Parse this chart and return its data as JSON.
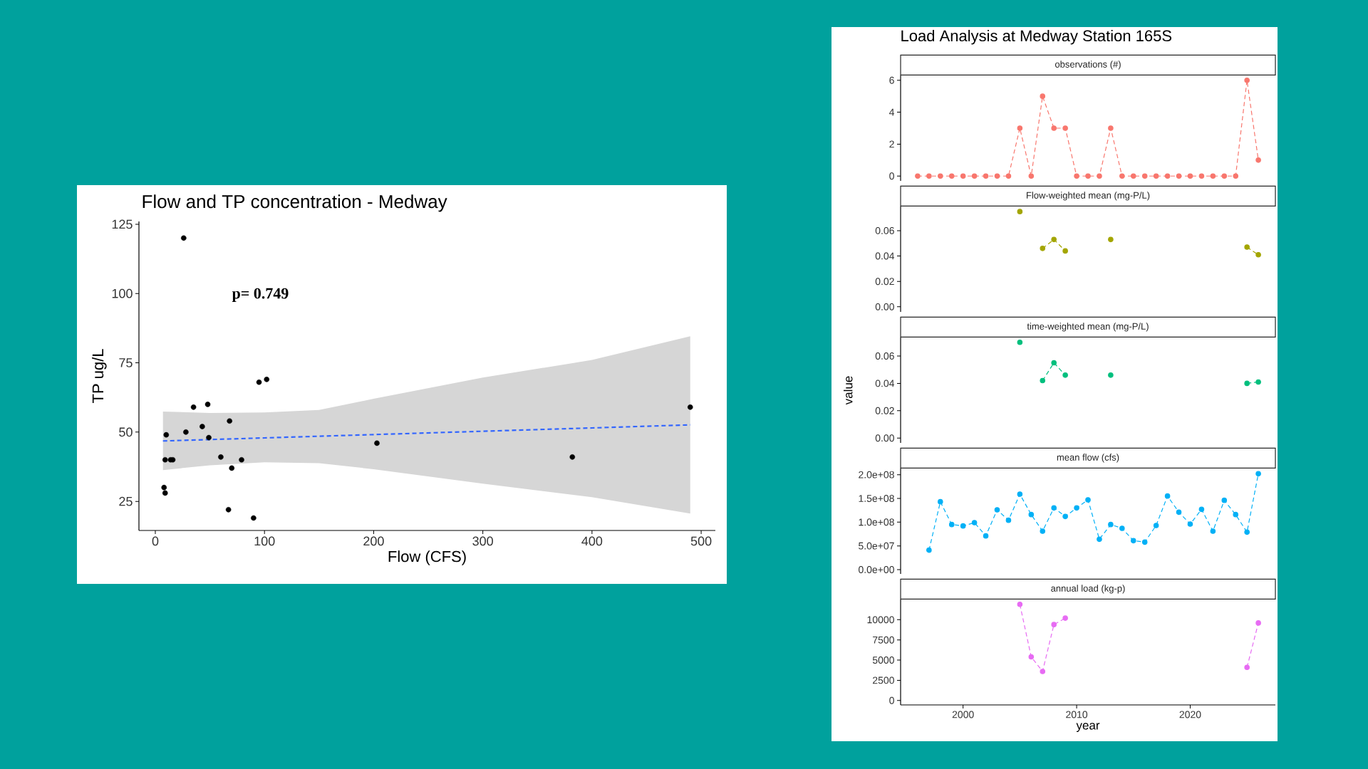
{
  "chart_data": [
    {
      "type": "scatter",
      "title": "Flow and TP concentration - Medway",
      "xlabel": "Flow (CFS)",
      "ylabel": "TP ug/L",
      "xlim": [
        -15,
        513
      ],
      "ylim": [
        14.5,
        126
      ],
      "xticks": [
        0,
        100,
        200,
        300,
        400,
        500
      ],
      "yticks": [
        25,
        50,
        75,
        100,
        125
      ],
      "marker": "circle",
      "annotations": [
        "p= 0.749"
      ],
      "series": [
        {
          "type": "scatter",
          "color": "#000000",
          "x": [
            9,
            10,
            8,
            9,
            14,
            16,
            26,
            28,
            35,
            43,
            48,
            49,
            60,
            68,
            70,
            67,
            79,
            90,
            95,
            102,
            203,
            382,
            490
          ],
          "values": [
            40,
            49,
            30,
            28,
            40,
            40,
            120,
            50,
            59,
            52,
            60,
            48,
            41,
            54,
            37,
            22,
            40,
            19,
            68,
            69,
            46,
            41,
            59
          ]
        },
        {
          "type": "line",
          "color": "#3366ff",
          "marker": "none",
          "line_style": "dashed",
          "x": [
            7,
            50,
            100,
            150,
            200,
            300,
            400,
            490
          ],
          "values": [
            46.8,
            47.3,
            47.9,
            48.5,
            49.1,
            50.3,
            51.5,
            52.6
          ],
          "lower": [
            36.3,
            38.0,
            39.1,
            38.8,
            36.6,
            31.4,
            26.5,
            20.6
          ],
          "upper": [
            57.4,
            56.9,
            57.1,
            58.0,
            62.0,
            69.7,
            76.0,
            84.6
          ]
        }
      ]
    },
    {
      "type": "line",
      "title": "Load Analysis at Medway Station 165S",
      "subtitle": "observations (#)",
      "color": "#f8766d",
      "marker": "circle",
      "line_style": "dashed",
      "tick_labels": "y",
      "xlim": [
        1994.5,
        2027.5
      ],
      "ylim": [
        -0.3,
        6.3
      ],
      "yticks": [
        0,
        2,
        4,
        6
      ],
      "x": [
        1996,
        1997,
        1998,
        1999,
        2000,
        2001,
        2002,
        2003,
        2004,
        2005,
        2006,
        2007,
        2008,
        2009,
        2010,
        2011,
        2012,
        2013,
        2014,
        2015,
        2016,
        2017,
        2018,
        2019,
        2020,
        2021,
        2022,
        2023,
        2024,
        2025,
        2026
      ],
      "values": [
        0,
        0,
        0,
        0,
        0,
        0,
        0,
        0,
        0,
        3,
        0,
        5,
        3,
        3,
        0,
        0,
        0,
        3,
        0,
        0,
        0,
        0,
        0,
        0,
        0,
        0,
        0,
        0,
        0,
        6,
        1
      ]
    },
    {
      "type": "line",
      "title": "Flow-weighted mean (mg-P/L)",
      "color": "#a3a500",
      "marker": "circle",
      "line_style": "dashed",
      "tick_labels": "y",
      "xlim": [
        1994.5,
        2027.5
      ],
      "ylim": [
        -0.004,
        0.079
      ],
      "yticks": [
        {
          "value": 0,
          "label": "0.00"
        },
        0.02,
        0.04,
        0.06
      ],
      "x": [
        2005,
        2006,
        2007,
        2008,
        2009,
        2010,
        2011,
        2012,
        2013,
        2014,
        2015,
        2016,
        2017,
        2018,
        2019,
        2020,
        2021,
        2022,
        2023,
        2024,
        2025,
        2026
      ],
      "values": [
        0.075,
        null,
        0.046,
        0.053,
        0.044,
        null,
        null,
        null,
        0.053,
        null,
        null,
        null,
        null,
        null,
        null,
        null,
        null,
        null,
        null,
        null,
        0.047,
        0.041
      ]
    },
    {
      "type": "line",
      "title": "time-weighted mean (mg-P/L)",
      "ylabel": "value",
      "color": "#00bf7d",
      "marker": "circle",
      "line_style": "dashed",
      "tick_labels": "y",
      "xlim": [
        1994.5,
        2027.5
      ],
      "ylim": [
        -0.0035,
        0.0735
      ],
      "yticks": [
        {
          "value": 0,
          "label": "0.00"
        },
        0.02,
        0.04,
        0.06
      ],
      "x": [
        2005,
        2006,
        2007,
        2008,
        2009,
        2010,
        2011,
        2012,
        2013,
        2014,
        2015,
        2016,
        2017,
        2018,
        2019,
        2020,
        2021,
        2022,
        2023,
        2024,
        2025,
        2026
      ],
      "values": [
        0.07,
        null,
        0.042,
        0.055,
        0.046,
        null,
        null,
        null,
        0.046,
        null,
        null,
        null,
        null,
        null,
        null,
        null,
        null,
        null,
        null,
        null,
        0.04,
        0.041
      ]
    },
    {
      "type": "line",
      "title": "mean flow (cfs)",
      "color": "#00b0f6",
      "marker": "circle",
      "line_style": "dashed",
      "tick_labels": "y",
      "xlim": [
        1994.5,
        2027.5
      ],
      "ylim": [
        -9000000,
        213000000
      ],
      "yticks": [
        {
          "value": 0,
          "label": "0.0e+00"
        },
        {
          "value": 50000000,
          "label": "5.0e+07"
        },
        {
          "value": 100000000,
          "label": "1.0e+08"
        },
        {
          "value": 150000000,
          "label": "1.5e+08"
        },
        {
          "value": 200000000,
          "label": "2.0e+08"
        }
      ],
      "x": [
        1997,
        1998,
        1999,
        2000,
        2001,
        2002,
        2003,
        2004,
        2005,
        2006,
        2007,
        2008,
        2009,
        2010,
        2011,
        2012,
        2013,
        2014,
        2015,
        2016,
        2017,
        2018,
        2019,
        2020,
        2021,
        2022,
        2023,
        2024,
        2025,
        2026
      ],
      "values": [
        41000000,
        143000000,
        95000000,
        92000000,
        99000000,
        71000000,
        126000000,
        104000000,
        159000000,
        116000000,
        81000000,
        130000000,
        112000000,
        130000000,
        147000000,
        64000000,
        95000000,
        87000000,
        61000000,
        58000000,
        93000000,
        155000000,
        121000000,
        96000000,
        127000000,
        81000000,
        146000000,
        116000000,
        79000000,
        202000000
      ]
    },
    {
      "type": "line",
      "title": "annual load (kg-p)",
      "xlabel": "year",
      "color": "#e76bf3",
      "marker": "circle",
      "line_style": "dashed",
      "xlim": [
        1994.5,
        2027.5
      ],
      "ylim": [
        -550,
        12500
      ],
      "xticks": [
        2000,
        2010,
        2020
      ],
      "yticks": [
        0,
        2500,
        5000,
        7500,
        10000
      ],
      "x": [
        2005,
        2006,
        2007,
        2008,
        2009,
        2010,
        2011,
        2012,
        2013,
        2014,
        2015,
        2016,
        2017,
        2018,
        2019,
        2020,
        2021,
        2022,
        2023,
        2024,
        2025,
        2026
      ],
      "values": [
        11900,
        5400,
        3600,
        9400,
        10200,
        null,
        null,
        null,
        null,
        null,
        null,
        null,
        null,
        null,
        null,
        null,
        null,
        null,
        null,
        null,
        4100,
        9600
      ]
    }
  ]
}
